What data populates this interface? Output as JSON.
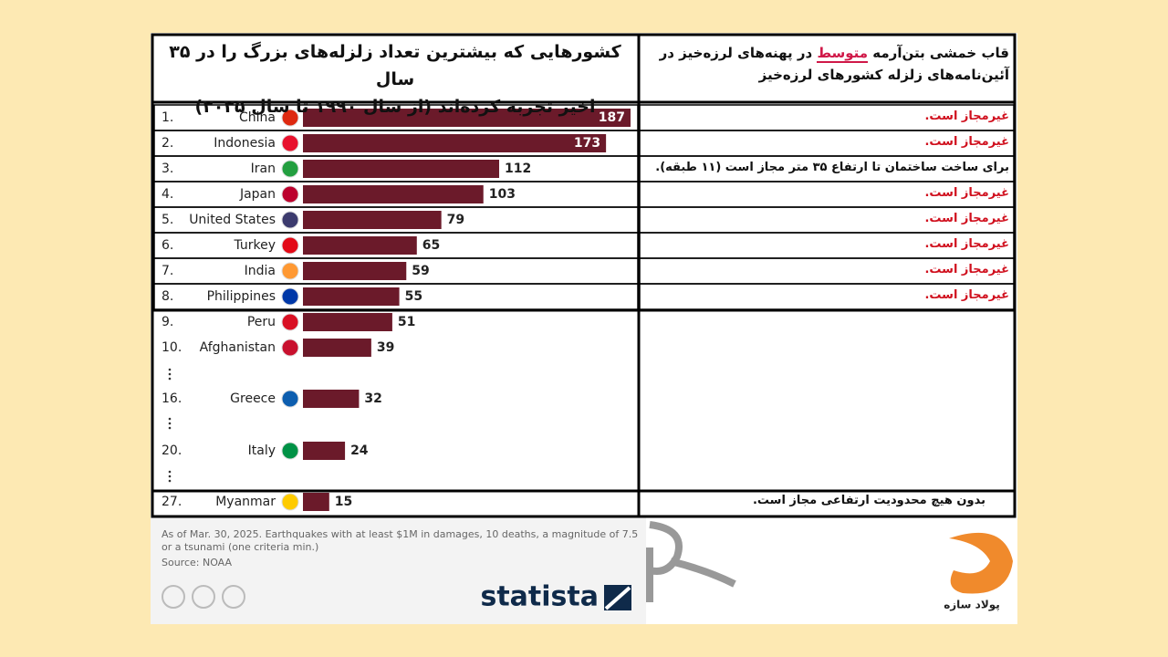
{
  "chart_data": {
    "type": "bar",
    "orientation": "horizontal",
    "color": "#6b1a2a",
    "title_lines": [
      "کشورهایی که بیشترین تعداد زلزله‌های بزرگ را در ۳۵ سال",
      "اخیر تجربه کرده‌اند (از سال ۱۹۹۰ تا سال ۲۰۲۵)"
    ],
    "ranks": [
      "1.",
      "2.",
      "3.",
      "4.",
      "5.",
      "6.",
      "7.",
      "8.",
      "9.",
      "10.",
      "16.",
      "20.",
      "27."
    ],
    "categories": [
      "China",
      "Indonesia",
      "Iran",
      "Japan",
      "United States",
      "Turkey",
      "India",
      "Philippines",
      "Peru",
      "Afghanistan",
      "Greece",
      "Italy",
      "Myanmar"
    ],
    "values": [
      187,
      173,
      112,
      103,
      79,
      65,
      59,
      55,
      51,
      39,
      32,
      24,
      15
    ],
    "footnote_lines": [
      "As of Mar. 30, 2025. Earthquakes with at least $1M in damages, 10 deaths, a magnitude of 7.5",
      "or a tsunami (one criteria min.)"
    ],
    "source": "Source: NOAA"
  },
  "side_header": {
    "before": "قاب خمشی بتن‌آرمه ",
    "highlight": "متوسط",
    "after": " در پهنه‌های لرزه‌خیز در",
    "line2": "آئین‌نامه‌های زلزله کشورهای لرزه‌خیز"
  },
  "notes": [
    "غیرمجاز است.",
    "غیرمجاز است.",
    "برای ساخت ساختمان تا ارتفاع ۳۵ متر مجاز است (۱۱ طبقه).",
    "غیرمجاز است.",
    "غیرمجاز است.",
    "غیرمجاز است.",
    "غیرمجاز است.",
    "غیرمجاز است."
  ],
  "last_note": "بدون هیچ محدودیت ارتفاعی مجاز است.",
  "brand": "statista",
  "logo_text": "پولاد سازه"
}
